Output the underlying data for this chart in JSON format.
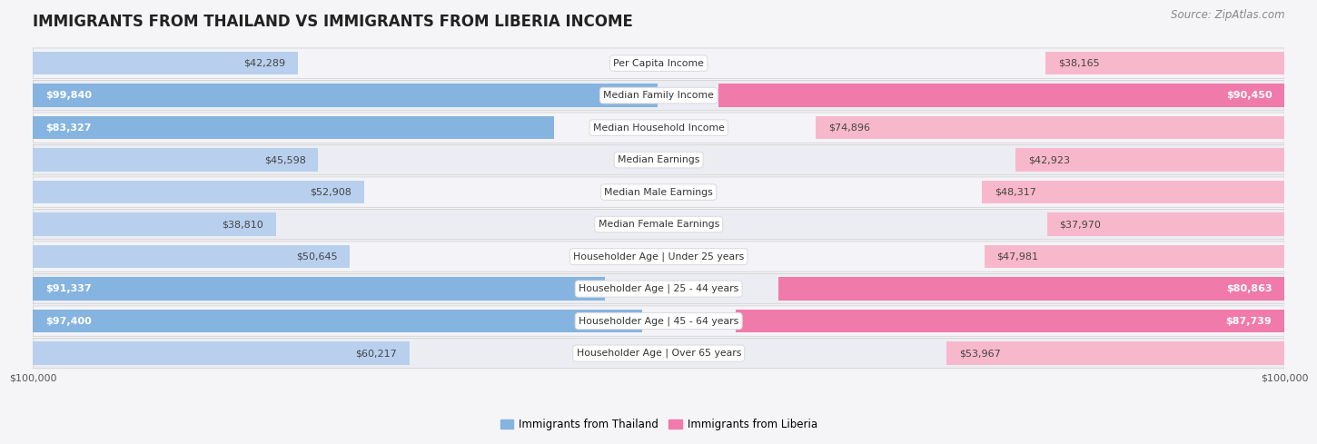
{
  "title": "IMMIGRANTS FROM THAILAND VS IMMIGRANTS FROM LIBERIA INCOME",
  "source": "Source: ZipAtlas.com",
  "categories": [
    "Per Capita Income",
    "Median Family Income",
    "Median Household Income",
    "Median Earnings",
    "Median Male Earnings",
    "Median Female Earnings",
    "Householder Age | Under 25 years",
    "Householder Age | 25 - 44 years",
    "Householder Age | 45 - 64 years",
    "Householder Age | Over 65 years"
  ],
  "thailand_values": [
    42289,
    99840,
    83327,
    45598,
    52908,
    38810,
    50645,
    91337,
    97400,
    60217
  ],
  "liberia_values": [
    38165,
    90450,
    74896,
    42923,
    48317,
    37970,
    47981,
    80863,
    87739,
    53967
  ],
  "max_value": 100000,
  "thailand_bar_color": "#85b4e0",
  "liberia_bar_color": "#f07aaa",
  "thailand_light_color": "#b8d0ee",
  "liberia_light_color": "#f8b8cc",
  "row_bg_odd": "#ecedf2",
  "row_bg_even": "#f4f4f8",
  "outer_bg": "#f5f5f8",
  "label_box_color": "#ffffff",
  "label_box_edge": "#dddddd",
  "title_fontsize": 12,
  "source_fontsize": 8.5,
  "value_fontsize": 8,
  "label_fontsize": 7.8,
  "legend_fontsize": 8.5,
  "axis_fontsize": 8,
  "large_value_threshold": 75000
}
